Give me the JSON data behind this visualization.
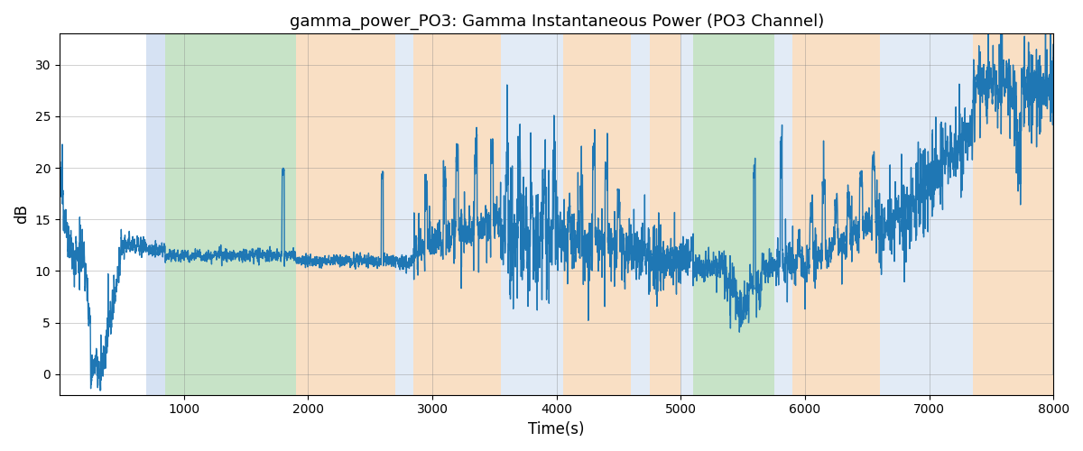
{
  "title": "gamma_power_PO3: Gamma Instantaneous Power (PO3 Channel)",
  "xlabel": "Time(s)",
  "ylabel": "dB",
  "xlim": [
    0,
    8000
  ],
  "ylim": [
    -2,
    33
  ],
  "yticks": [
    0,
    5,
    10,
    15,
    20,
    25,
    30
  ],
  "xticks": [
    1000,
    2000,
    3000,
    4000,
    5000,
    6000,
    7000,
    8000
  ],
  "line_color": "#1f77b4",
  "line_width": 1.0,
  "colored_bands": [
    {
      "xmin": 700,
      "xmax": 850,
      "color": "#aec6e8",
      "alpha": 0.5
    },
    {
      "xmin": 850,
      "xmax": 1900,
      "color": "#90c990",
      "alpha": 0.5
    },
    {
      "xmin": 1900,
      "xmax": 2700,
      "color": "#f5c08a",
      "alpha": 0.5
    },
    {
      "xmin": 2700,
      "xmax": 2850,
      "color": "#aec6e8",
      "alpha": 0.35
    },
    {
      "xmin": 2850,
      "xmax": 3550,
      "color": "#f5c08a",
      "alpha": 0.5
    },
    {
      "xmin": 3550,
      "xmax": 4050,
      "color": "#aec6e8",
      "alpha": 0.35
    },
    {
      "xmin": 4050,
      "xmax": 4600,
      "color": "#f5c08a",
      "alpha": 0.5
    },
    {
      "xmin": 4600,
      "xmax": 4750,
      "color": "#aec6e8",
      "alpha": 0.35
    },
    {
      "xmin": 4750,
      "xmax": 5000,
      "color": "#f5c08a",
      "alpha": 0.5
    },
    {
      "xmin": 5000,
      "xmax": 5100,
      "color": "#aec6e8",
      "alpha": 0.35
    },
    {
      "xmin": 5100,
      "xmax": 5750,
      "color": "#90c990",
      "alpha": 0.5
    },
    {
      "xmin": 5750,
      "xmax": 5900,
      "color": "#aec6e8",
      "alpha": 0.35
    },
    {
      "xmin": 5900,
      "xmax": 6600,
      "color": "#f5c08a",
      "alpha": 0.5
    },
    {
      "xmin": 6600,
      "xmax": 7350,
      "color": "#aec6e8",
      "alpha": 0.35
    },
    {
      "xmin": 7350,
      "xmax": 8050,
      "color": "#f5c08a",
      "alpha": 0.5
    }
  ],
  "title_fontsize": 13,
  "axis_fontsize": 12,
  "tick_fontsize": 10,
  "seed": 12345,
  "n_points": 8000
}
